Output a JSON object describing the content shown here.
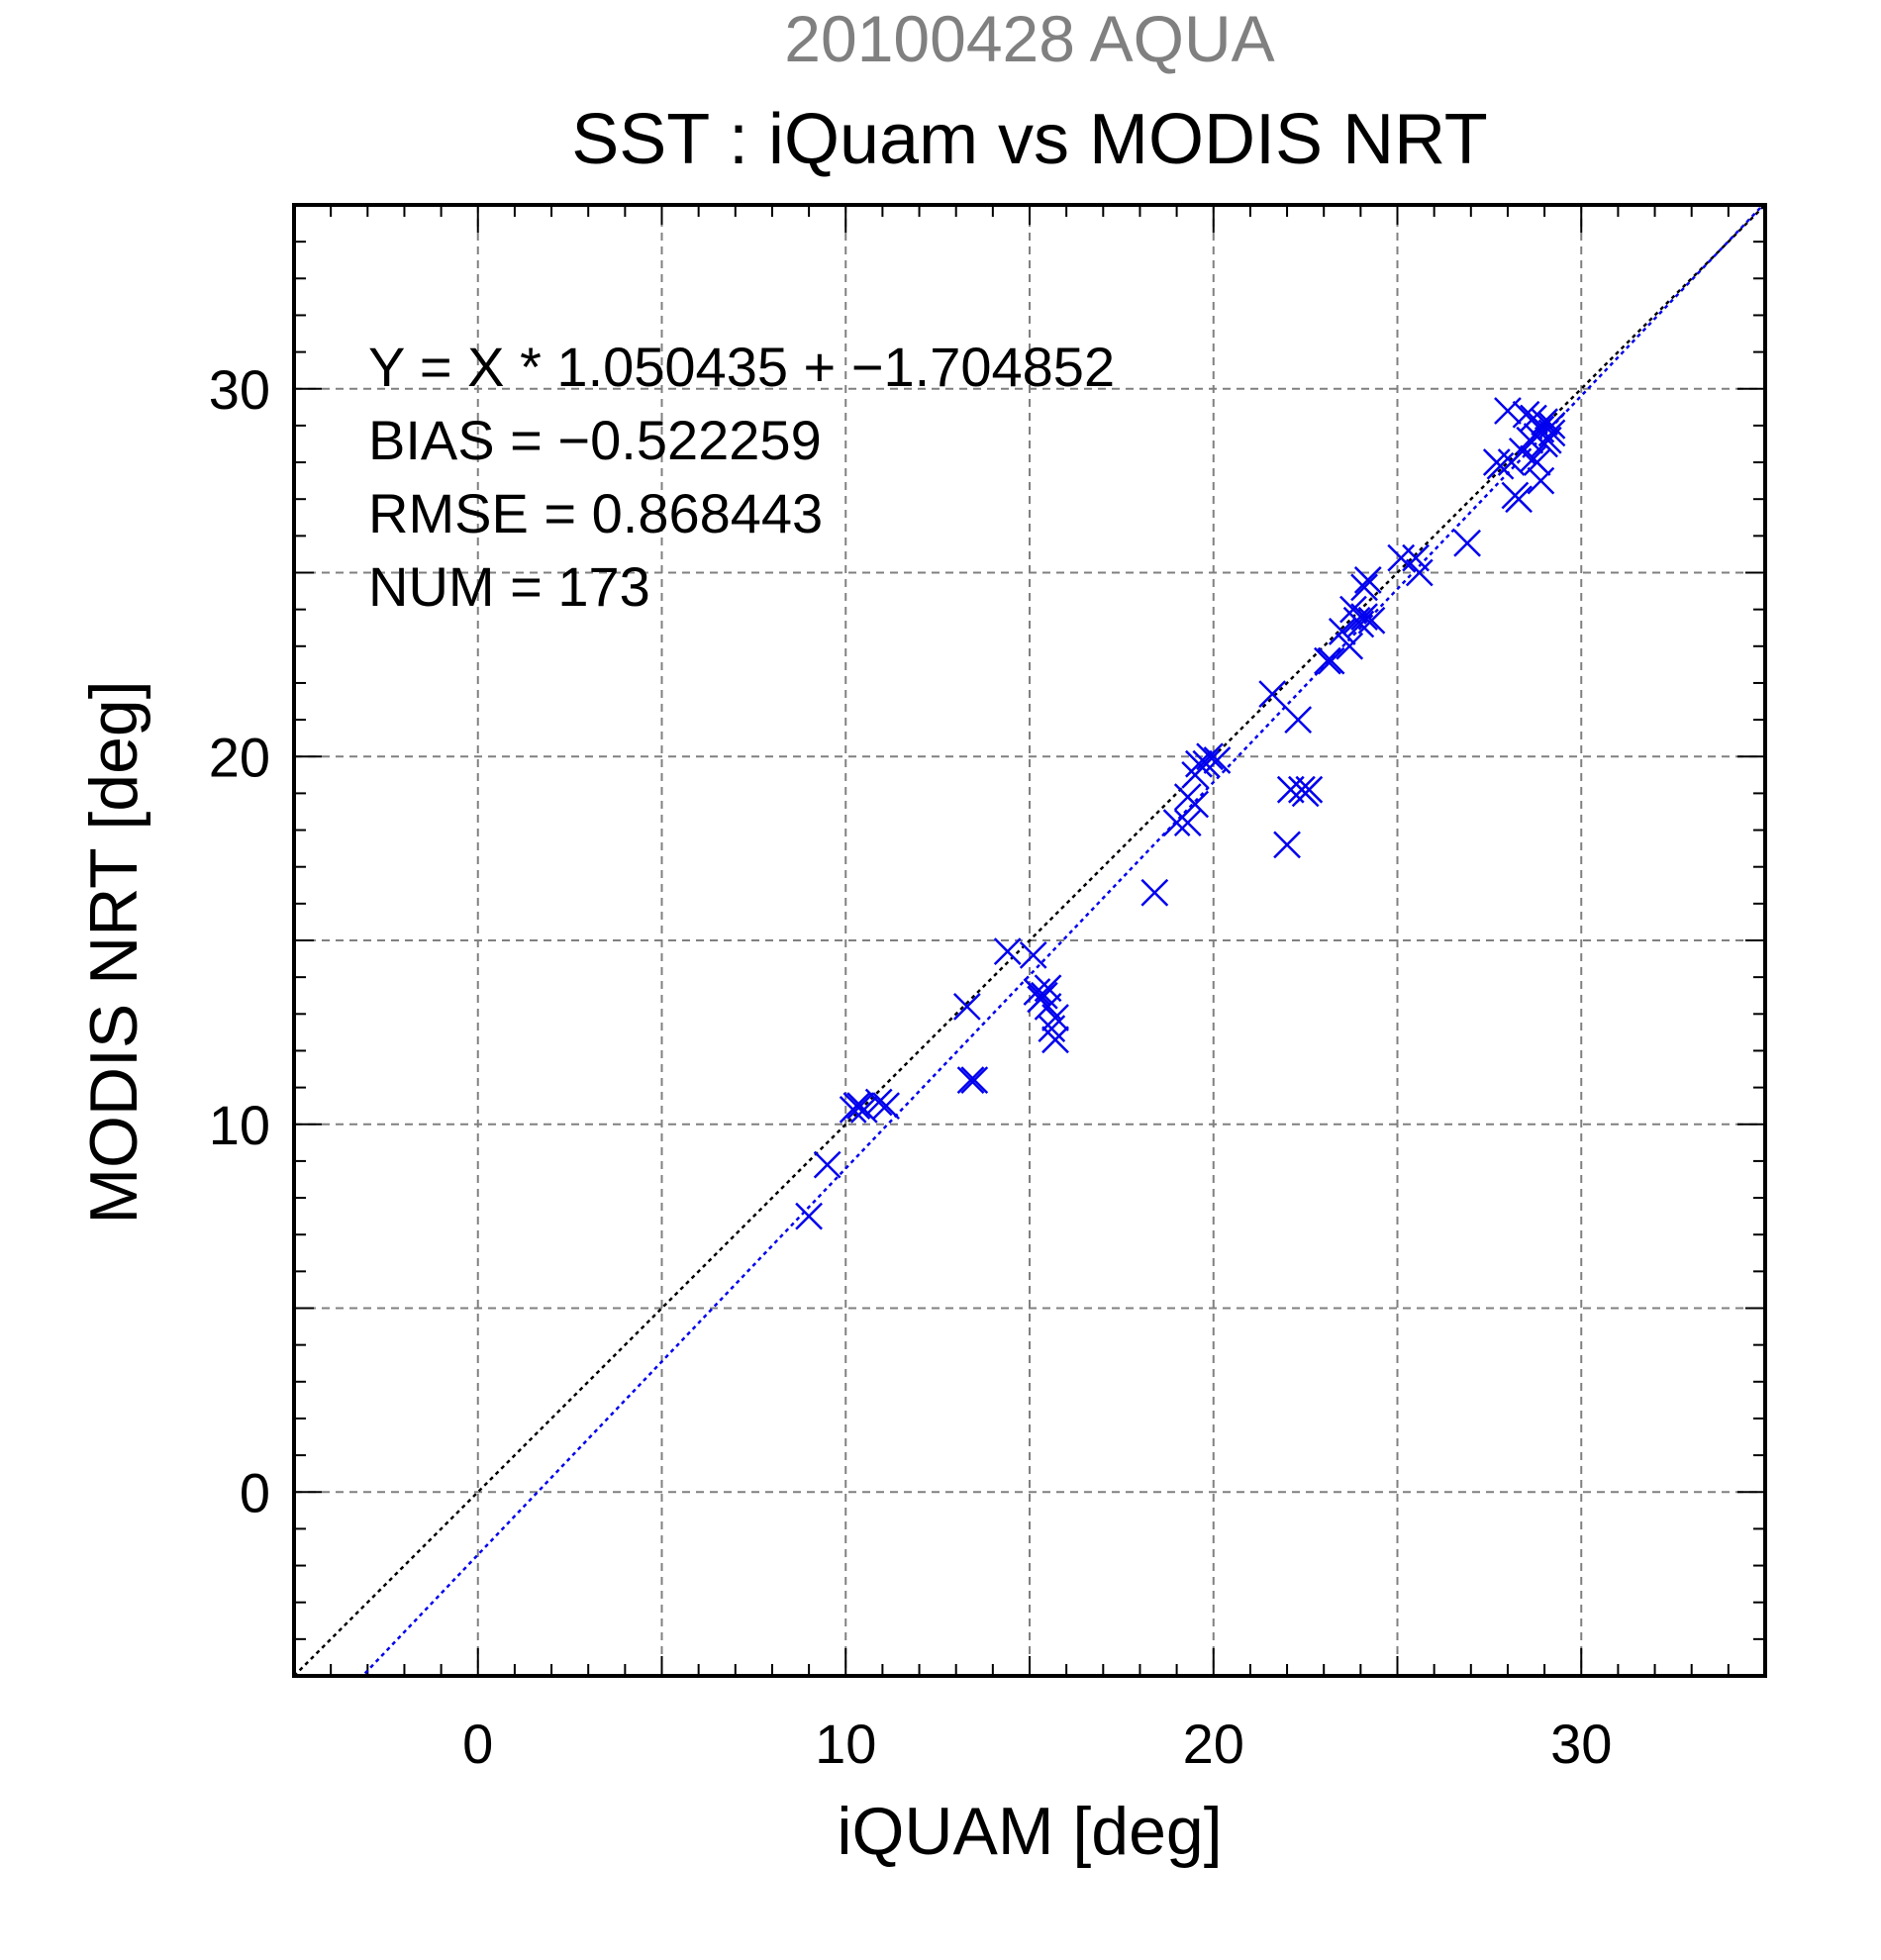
{
  "chart_data": {
    "type": "scatter",
    "supertitle": "20100428 AQUA",
    "title": "SST : iQuam vs MODIS NRT",
    "xlabel": "iQUAM [deg]",
    "ylabel": "MODIS NRT [deg]",
    "xlim": [
      -5,
      35
    ],
    "ylim": [
      -5,
      35
    ],
    "xticks": [
      0,
      10,
      20,
      30
    ],
    "yticks": [
      0,
      10,
      20,
      30
    ],
    "xtick_labels": [
      "0",
      "10",
      "20",
      "30"
    ],
    "ytick_labels": [
      "0",
      "10",
      "20",
      "30"
    ],
    "grid": true,
    "stats": {
      "equation": "Y = X * 1.050435 + −1.704852",
      "bias": "BIAS = −0.522259",
      "rmse": "RMSE = 0.868443",
      "num": "NUM = 173"
    },
    "reference_line": {
      "slope": 1.0,
      "intercept": 0.0,
      "color": "#000000"
    },
    "fit_line": {
      "slope": 1.050435,
      "intercept": -1.704852,
      "color": "#0000ee"
    },
    "marker_color": "#0000ee",
    "points": [
      [
        9.0,
        7.5
      ],
      [
        9.5,
        8.9
      ],
      [
        10.2,
        10.4
      ],
      [
        10.4,
        10.5
      ],
      [
        10.3,
        10.5
      ],
      [
        10.5,
        10.4
      ],
      [
        10.9,
        10.6
      ],
      [
        11.1,
        10.5
      ],
      [
        13.3,
        13.2
      ],
      [
        13.4,
        11.2
      ],
      [
        13.5,
        11.2
      ],
      [
        14.4,
        14.7
      ],
      [
        15.1,
        14.6
      ],
      [
        15.2,
        13.6
      ],
      [
        15.3,
        13.4
      ],
      [
        15.4,
        13.5
      ],
      [
        15.5,
        13.7
      ],
      [
        15.5,
        13.2
      ],
      [
        15.6,
        12.6
      ],
      [
        15.7,
        12.3
      ],
      [
        15.7,
        12.9
      ],
      [
        18.4,
        16.3
      ],
      [
        19.0,
        18.2
      ],
      [
        19.3,
        18.2
      ],
      [
        19.3,
        18.9
      ],
      [
        19.5,
        19.5
      ],
      [
        19.5,
        18.7
      ],
      [
        19.6,
        19.8
      ],
      [
        19.8,
        19.8
      ],
      [
        19.9,
        20.0
      ],
      [
        20.1,
        19.9
      ],
      [
        21.6,
        21.7
      ],
      [
        22.0,
        17.6
      ],
      [
        22.1,
        19.1
      ],
      [
        22.3,
        21.0
      ],
      [
        22.4,
        19.1
      ],
      [
        22.6,
        19.1
      ],
      [
        22.5,
        19.0
      ],
      [
        23.1,
        22.6
      ],
      [
        23.2,
        22.6
      ],
      [
        23.5,
        23.4
      ],
      [
        23.7,
        23.0
      ],
      [
        23.8,
        24.0
      ],
      [
        23.9,
        23.7
      ],
      [
        24.0,
        23.6
      ],
      [
        24.1,
        24.6
      ],
      [
        24.1,
        23.8
      ],
      [
        24.2,
        24.8
      ],
      [
        24.3,
        23.7
      ],
      [
        25.1,
        25.4
      ],
      [
        25.5,
        25.4
      ],
      [
        25.6,
        25.0
      ],
      [
        26.9,
        25.8
      ],
      [
        27.7,
        28.0
      ],
      [
        27.8,
        27.9
      ],
      [
        28.0,
        29.4
      ],
      [
        28.1,
        28.0
      ],
      [
        28.2,
        27.1
      ],
      [
        28.3,
        27.0
      ],
      [
        28.4,
        28.3
      ],
      [
        28.5,
        29.3
      ],
      [
        28.6,
        28.6
      ],
      [
        28.7,
        28.1
      ],
      [
        28.7,
        29.2
      ],
      [
        28.8,
        28.7
      ],
      [
        28.8,
        28.0
      ],
      [
        28.9,
        28.9
      ],
      [
        28.9,
        27.5
      ],
      [
        29.0,
        29.1
      ],
      [
        29.0,
        28.5
      ],
      [
        29.1,
        28.6
      ],
      [
        29.2,
        29.0
      ],
      [
        29.2,
        28.8
      ]
    ]
  }
}
